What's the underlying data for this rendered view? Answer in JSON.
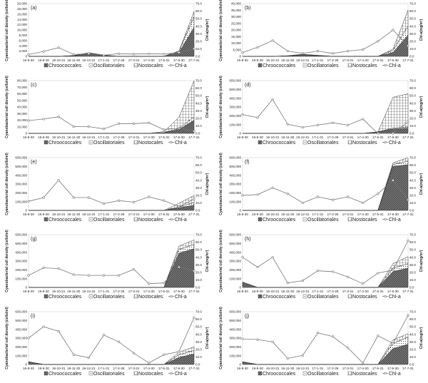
{
  "figure": {
    "x_categories": [
      "16-8-30",
      "16-9-30",
      "16-10-31",
      "16-11-30",
      "16-12-31",
      "17-1-31",
      "17-2-28",
      "17-3-31",
      "17-4-30",
      "17-5-31",
      "17-6-30",
      "17-7-31"
    ],
    "left_axis_label": "Cyanobacterial cell density (cells/ml)",
    "right_axis_label": "Chl-a(mg/m³)",
    "legend": [
      "Chroococcales",
      "Oscillatoriales",
      "Nostocales",
      "Chl-a"
    ],
    "colors": {
      "line": "#777777",
      "axis": "#888888",
      "grid": "#d0d0d0",
      "fill_dark": "#6b6b6b",
      "fill_light": "#ffffff"
    }
  },
  "chart_data": [
    {
      "type": "area",
      "label": "(a)",
      "ylim": [
        0,
        20000
      ],
      "yticks": [
        "0",
        "2,000",
        "4,000",
        "6,000",
        "8,000",
        "10,000",
        "12,000",
        "14,000",
        "16,000",
        "18,000",
        "20,000"
      ],
      "y2lim": [
        0,
        70
      ],
      "y2ticks": [
        "0.0",
        "10.0",
        "20.0",
        "30.0",
        "40.0",
        "50.0",
        "60.0",
        "70.0"
      ],
      "series": [
        {
          "name": "Chroococcales",
          "values": [
            0,
            0,
            0,
            200,
            900,
            300,
            0,
            0,
            0,
            0,
            1500,
            11000
          ]
        },
        {
          "name": "Oscillatoriales",
          "values": [
            0,
            0,
            0,
            100,
            300,
            100,
            0,
            0,
            0,
            0,
            500,
            4000
          ]
        },
        {
          "name": "Nostocales",
          "values": [
            0,
            0,
            0,
            0,
            200,
            100,
            0,
            0,
            0,
            0,
            0,
            2000
          ]
        }
      ],
      "chl_a": [
        2.5,
        6.5,
        11.5,
        2.5,
        3.5,
        1.5,
        3.5,
        3,
        3.5,
        3,
        5,
        10
      ]
    },
    {
      "type": "area",
      "label": "(b)",
      "ylim": [
        0,
        40000
      ],
      "yticks": [
        "0",
        "5,000",
        "10,000",
        "15,000",
        "20,000",
        "25,000",
        "30,000",
        "35,000",
        "40,000"
      ],
      "y2lim": [
        0,
        70
      ],
      "y2ticks": [
        "0.0",
        "10.0",
        "20.0",
        "30.0",
        "40.0",
        "50.0",
        "60.0",
        "70.0"
      ],
      "series": [
        {
          "name": "Chroococcales",
          "values": [
            0,
            0,
            0,
            300,
            900,
            500,
            0,
            0,
            0,
            0,
            3000,
            16000
          ]
        },
        {
          "name": "Oscillatoriales",
          "values": [
            0,
            0,
            0,
            100,
            400,
            200,
            0,
            0,
            0,
            0,
            1500,
            7000
          ]
        },
        {
          "name": "Nostocales",
          "values": [
            0,
            0,
            0,
            100,
            300,
            100,
            0,
            0,
            0,
            0,
            1000,
            12000
          ]
        }
      ],
      "chl_a": [
        5,
        12,
        21,
        7,
        4,
        7,
        4,
        7,
        9,
        20,
        35,
        14
      ]
    },
    {
      "type": "area",
      "label": "(c)",
      "ylim": [
        0,
        80000
      ],
      "yticks": [
        "0",
        "10,000",
        "20,000",
        "30,000",
        "40,000",
        "50,000",
        "60,000",
        "70,000",
        "80,000"
      ],
      "y2lim": [
        0,
        70
      ],
      "y2ticks": [
        "0.0",
        "10.0",
        "20.0",
        "30.0",
        "40.0",
        "50.0",
        "60.0",
        "70.0"
      ],
      "series": [
        {
          "name": "Chroococcales",
          "values": [
            0,
            0,
            0,
            0,
            0,
            0,
            0,
            0,
            0,
            1000,
            6000,
            20000
          ]
        },
        {
          "name": "Oscillatoriales",
          "values": [
            0,
            0,
            0,
            0,
            0,
            0,
            0,
            0,
            0,
            200,
            1500,
            5000
          ]
        },
        {
          "name": "Nostocales",
          "values": [
            0,
            0,
            0,
            0,
            0,
            0,
            0,
            0,
            0,
            1500,
            17000,
            55000
          ]
        }
      ],
      "chl_a": [
        17,
        19,
        22,
        9,
        9,
        6,
        13,
        13,
        14,
        5,
        7,
        3
      ]
    },
    {
      "type": "area",
      "label": "(d)",
      "ylim": [
        0,
        600000
      ],
      "yticks": [
        "0",
        "100,000",
        "200,000",
        "300,000",
        "400,000",
        "500,000",
        "600,000"
      ],
      "y2lim": [
        0,
        70
      ],
      "y2ticks": [
        "0.0",
        "10.0",
        "20.0",
        "30.0",
        "40.0",
        "50.0",
        "60.0",
        "70.0"
      ],
      "series": [
        {
          "name": "Chroococcales",
          "values": [
            0,
            0,
            0,
            0,
            0,
            0,
            0,
            0,
            0,
            15000,
            50000,
            60000
          ]
        },
        {
          "name": "Oscillatoriales",
          "values": [
            0,
            0,
            0,
            0,
            0,
            0,
            0,
            0,
            0,
            2000,
            10000,
            15000
          ]
        },
        {
          "name": "Nostocales",
          "values": [
            0,
            0,
            0,
            0,
            0,
            0,
            0,
            0,
            0,
            0,
            350000,
            375000
          ]
        }
      ],
      "chl_a": [
        25,
        21,
        45,
        12,
        8,
        11,
        14,
        11,
        19,
        0,
        0,
        15
      ]
    },
    {
      "type": "area",
      "label": "(e)",
      "ylim": [
        0,
        600000
      ],
      "yticks": [
        "0",
        "100,000",
        "200,000",
        "300,000",
        "400,000",
        "500,000",
        "600,000"
      ],
      "y2lim": [
        0,
        70
      ],
      "y2ticks": [
        "0.0",
        "10.0",
        "20.0",
        "30.0",
        "40.0",
        "50.0",
        "60.0",
        "70.0"
      ],
      "series": [
        {
          "name": "Chroococcales",
          "values": [
            0,
            0,
            0,
            0,
            0,
            0,
            0,
            0,
            0,
            0,
            30000,
            60000
          ]
        },
        {
          "name": "Oscillatoriales",
          "values": [
            0,
            0,
            0,
            0,
            0,
            0,
            0,
            0,
            0,
            0,
            10000,
            30000
          ]
        },
        {
          "name": "Nostocales",
          "values": [
            0,
            0,
            0,
            0,
            0,
            0,
            0,
            0,
            0,
            0,
            40000,
            80000
          ]
        }
      ],
      "chl_a": [
        12,
        17,
        40,
        17,
        17,
        9,
        13,
        11,
        18,
        13,
        5,
        15
      ]
    },
    {
      "type": "area",
      "label": "(f)",
      "ylim": [
        0,
        600000
      ],
      "yticks": [
        "0",
        "100,000",
        "200,000",
        "300,000",
        "400,000",
        "500,000",
        "600,000"
      ],
      "y2lim": [
        0,
        70
      ],
      "y2ticks": [
        "0.0",
        "10.0",
        "20.0",
        "30.0",
        "40.0",
        "50.0",
        "60.0",
        "70.0"
      ],
      "series": [
        {
          "name": "Chroococcales",
          "values": [
            0,
            0,
            0,
            0,
            0,
            0,
            0,
            0,
            0,
            0,
            500000,
            520000
          ]
        },
        {
          "name": "Oscillatoriales",
          "values": [
            0,
            0,
            0,
            0,
            0,
            0,
            0,
            0,
            0,
            0,
            20000,
            40000
          ]
        },
        {
          "name": "Nostocales",
          "values": [
            0,
            0,
            0,
            0,
            0,
            0,
            0,
            0,
            0,
            0,
            20000,
            40000
          ]
        }
      ],
      "chl_a": [
        20,
        21,
        30,
        22,
        10,
        18,
        14,
        18,
        10,
        22,
        40,
        14
      ]
    },
    {
      "type": "area",
      "label": "(g)",
      "ylim": [
        0,
        600000
      ],
      "yticks": [
        "0",
        "100,000",
        "200,000",
        "300,000",
        "400,000",
        "500,000",
        "600,000"
      ],
      "y2lim": [
        0,
        70
      ],
      "y2ticks": [
        "0.0",
        "10.0",
        "20.0",
        "30.0",
        "40.0",
        "50.0",
        "60.0",
        "70.0"
      ],
      "series": [
        {
          "name": "Chroococcales",
          "values": [
            0,
            0,
            0,
            0,
            0,
            0,
            0,
            0,
            0,
            0,
            390000,
            440000
          ]
        },
        {
          "name": "Oscillatoriales",
          "values": [
            0,
            0,
            0,
            0,
            0,
            0,
            0,
            0,
            0,
            0,
            40000,
            50000
          ]
        },
        {
          "name": "Nostocales",
          "values": [
            0,
            0,
            0,
            0,
            0,
            0,
            0,
            0,
            0,
            0,
            40000,
            50000
          ]
        }
      ],
      "chl_a": [
        16,
        26,
        25,
        17,
        16,
        16,
        16,
        24,
        5,
        6,
        27,
        22
      ]
    },
    {
      "type": "area",
      "label": "(h)",
      "ylim": [
        0,
        600000
      ],
      "yticks": [
        "0",
        "100,000",
        "200,000",
        "300,000",
        "400,000",
        "500,000",
        "600,000"
      ],
      "y2lim": [
        0,
        70
      ],
      "y2ticks": [
        "0.0",
        "10.0",
        "20.0",
        "30.0",
        "40.0",
        "50.0",
        "60.0",
        "70.0"
      ],
      "series": [
        {
          "name": "Chroococcales",
          "values": [
            60000,
            0,
            0,
            0,
            0,
            0,
            0,
            0,
            0,
            0,
            180000,
            220000
          ]
        },
        {
          "name": "Oscillatoriales",
          "values": [
            0,
            0,
            0,
            0,
            0,
            0,
            0,
            0,
            0,
            0,
            40000,
            50000
          ]
        },
        {
          "name": "Nostocales",
          "values": [
            0,
            0,
            0,
            0,
            0,
            0,
            0,
            0,
            0,
            0,
            50000,
            80000
          ]
        }
      ],
      "chl_a": [
        40,
        27,
        40,
        6,
        9,
        22,
        21,
        14,
        5,
        19,
        23,
        62
      ]
    },
    {
      "type": "area",
      "label": "(i)",
      "ylim": [
        0,
        600000
      ],
      "yticks": [
        "0",
        "100,000",
        "200,000",
        "300,000",
        "400,000",
        "500,000",
        "600,000"
      ],
      "y2lim": [
        0,
        70
      ],
      "y2ticks": [
        "0.0",
        "10.0",
        "20.0",
        "30.0",
        "40.0",
        "50.0",
        "60.0",
        "70.0"
      ],
      "series": [
        {
          "name": "Chroococcales",
          "values": [
            30000,
            0,
            0,
            0,
            0,
            0,
            0,
            0,
            0,
            0,
            80000,
            120000
          ]
        },
        {
          "name": "Oscillatoriales",
          "values": [
            0,
            0,
            0,
            0,
            0,
            0,
            0,
            0,
            0,
            0,
            30000,
            40000
          ]
        },
        {
          "name": "Nostocales",
          "values": [
            0,
            0,
            0,
            0,
            0,
            0,
            0,
            0,
            0,
            0,
            30000,
            40000
          ]
        }
      ],
      "chl_a": [
        35,
        50,
        44,
        13,
        9,
        39,
        30,
        15,
        2,
        13,
        17,
        62
      ]
    },
    {
      "type": "area",
      "label": "(j)",
      "ylim": [
        0,
        600000
      ],
      "yticks": [
        "0",
        "100,000",
        "200,000",
        "300,000",
        "400,000",
        "500,000",
        "600,000"
      ],
      "y2lim": [
        0,
        70
      ],
      "y2ticks": [
        "0.0",
        "10.0",
        "20.0",
        "30.0",
        "40.0",
        "50.0",
        "60.0",
        "70.0"
      ],
      "series": [
        {
          "name": "Chroococcales",
          "values": [
            30000,
            0,
            0,
            0,
            0,
            0,
            0,
            0,
            0,
            0,
            180000,
            230000
          ]
        },
        {
          "name": "Oscillatoriales",
          "values": [
            0,
            0,
            0,
            0,
            0,
            0,
            0,
            0,
            0,
            0,
            60000,
            80000
          ]
        },
        {
          "name": "Nostocales",
          "values": [
            0,
            0,
            0,
            0,
            0,
            0,
            0,
            0,
            0,
            0,
            40000,
            40000
          ]
        }
      ],
      "chl_a": [
        34,
        33,
        30,
        8,
        12,
        42,
        37,
        22,
        2,
        38,
        28,
        65
      ]
    }
  ]
}
